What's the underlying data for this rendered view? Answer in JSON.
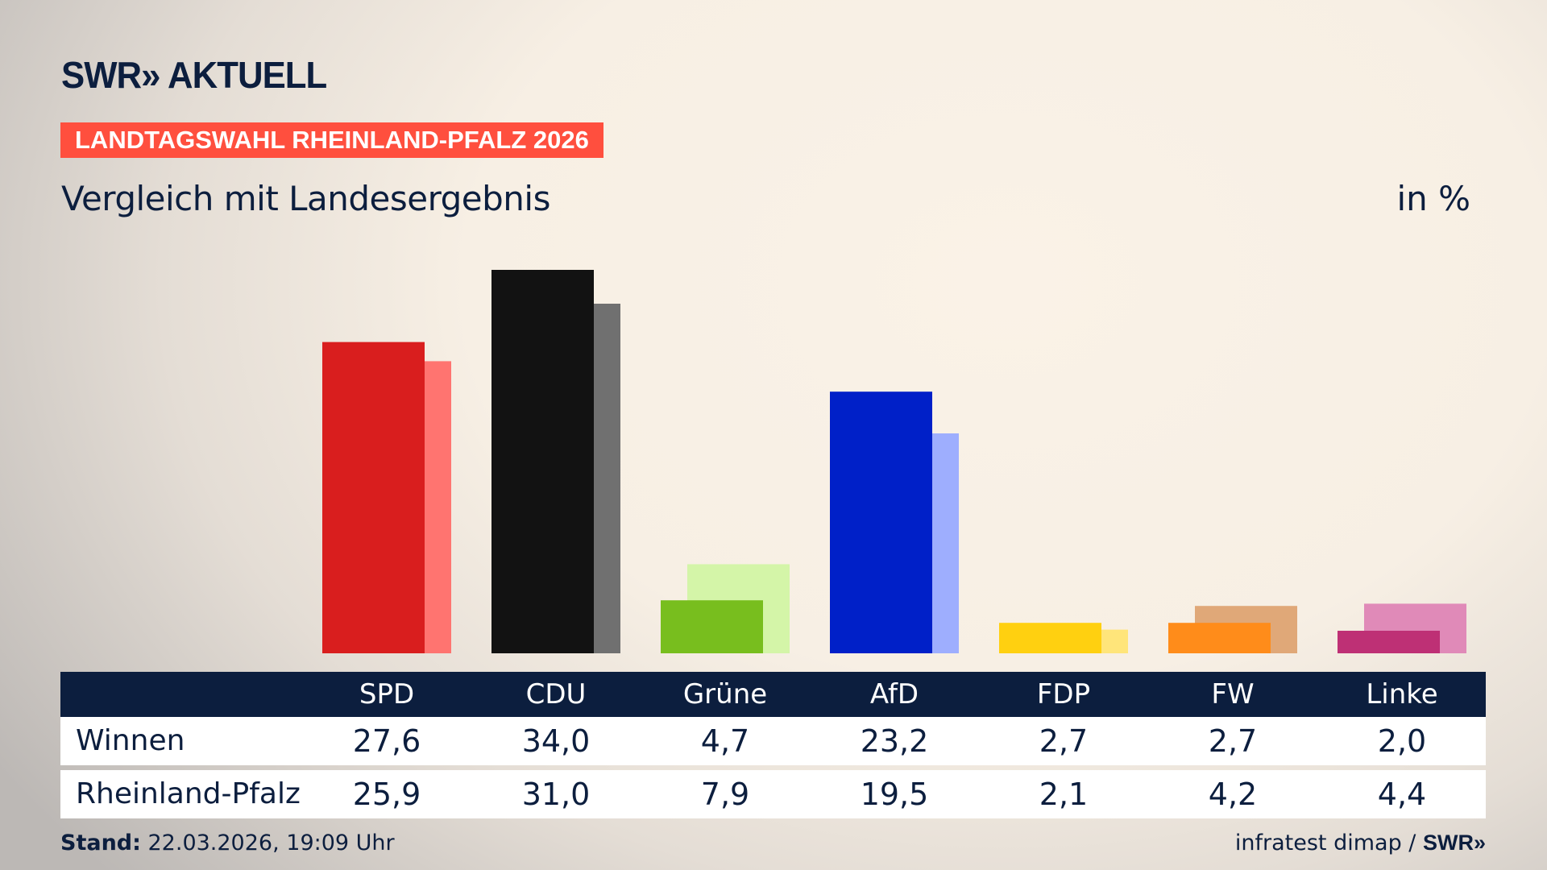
{
  "brand": {
    "logo": "SWR» AKTUELL"
  },
  "banner": "LANDTAGSWAHL RHEINLAND-PFALZ 2026",
  "subtitle": "Vergleich mit Landesergebnis",
  "unit": "in %",
  "chart_data": {
    "type": "bar",
    "categories": [
      "SPD",
      "CDU",
      "Grüne",
      "AfD",
      "FDP",
      "FW",
      "Linke"
    ],
    "series": [
      {
        "name": "Winnen",
        "values": [
          27.6,
          34.0,
          4.7,
          23.2,
          2.7,
          2.7,
          2.0
        ],
        "colors": [
          "#d91e1e",
          "#121212",
          "#78be1e",
          "#0020c8",
          "#ffd010",
          "#ff8c1a",
          "#be3075"
        ]
      },
      {
        "name": "Rheinland-Pfalz",
        "values": [
          25.9,
          31.0,
          7.9,
          19.5,
          2.1,
          4.2,
          4.4
        ],
        "colors": [
          "#ff7470",
          "#707070",
          "#d4f5a8",
          "#9eaefe",
          "#ffe57a",
          "#e0a878",
          "#e08ab8"
        ]
      }
    ],
    "ylim": [
      0,
      34
    ],
    "grid": false
  },
  "table": {
    "headers": [
      "SPD",
      "CDU",
      "Grüne",
      "AfD",
      "FDP",
      "FW",
      "Linke"
    ],
    "rows": [
      {
        "label": "Winnen",
        "values": [
          "27,6",
          "34,0",
          "4,7",
          "23,2",
          "2,7",
          "2,7",
          "2,0"
        ]
      },
      {
        "label": "Rheinland-Pfalz",
        "values": [
          "25,9",
          "31,0",
          "7,9",
          "19,5",
          "2,1",
          "4,2",
          "4,4"
        ]
      }
    ]
  },
  "footer": {
    "stand_label": "Stand:",
    "stand_value": " 22.03.2026, 19:09 Uhr",
    "source": "infratest dimap / ",
    "source_logo": "SWR»"
  },
  "colors": {
    "navy": "#0c1e3e",
    "banner": "#ff4f3e"
  }
}
